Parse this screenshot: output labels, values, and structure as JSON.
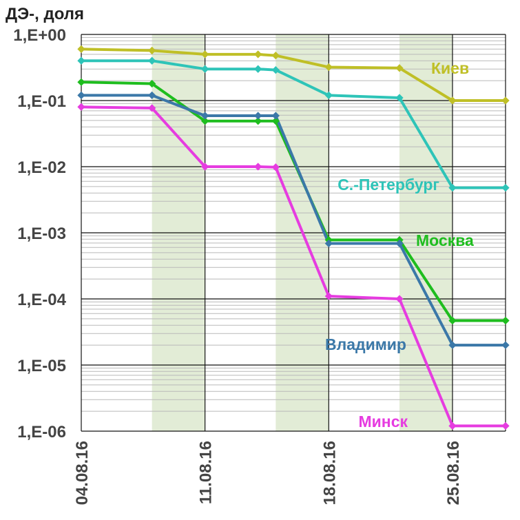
{
  "chart_data": {
    "type": "line",
    "ylabel": "ДЭ-, доля",
    "yscale": "log",
    "ylim": [
      1e-06,
      1
    ],
    "y_ticks": [
      "1,E+00",
      "1,E-01",
      "1,E-02",
      "1,E-03",
      "1,E-04",
      "1,E-05",
      "1,E-06"
    ],
    "x_ticks": [
      {
        "label": "04.08.16",
        "day": 4
      },
      {
        "label": "11.08.16",
        "day": 11
      },
      {
        "label": "18.08.16",
        "day": 18
      },
      {
        "label": "25.08.16",
        "day": 25
      }
    ],
    "xlim_days": [
      4,
      28
    ],
    "shaded_day_ranges": [
      [
        8,
        11
      ],
      [
        15,
        18
      ],
      [
        22,
        25
      ]
    ],
    "grid": true,
    "series": [
      {
        "name": "Киев",
        "color": "#bfbf26",
        "x": [
          4,
          8,
          11,
          14,
          15,
          18,
          22,
          25,
          28
        ],
        "y": [
          0.6,
          0.57,
          0.5,
          0.5,
          0.48,
          0.32,
          0.31,
          0.1,
          0.1
        ]
      },
      {
        "name": "С.-Петербург",
        "color": "#2ec4b8",
        "x": [
          4,
          8,
          11,
          14,
          15,
          18,
          22,
          25,
          28
        ],
        "y": [
          0.4,
          0.4,
          0.3,
          0.3,
          0.29,
          0.12,
          0.11,
          0.0048,
          0.0048
        ]
      },
      {
        "name": "Москва",
        "color": "#1ebd1e",
        "x": [
          4,
          8,
          11,
          14,
          15,
          18,
          22,
          25,
          28
        ],
        "y": [
          0.19,
          0.18,
          0.049,
          0.049,
          0.049,
          0.00078,
          0.00078,
          4.7e-05,
          4.7e-05
        ]
      },
      {
        "name": "Владимир",
        "color": "#3b78a8",
        "x": [
          4,
          8,
          11,
          14,
          15,
          18,
          22,
          25,
          28
        ],
        "y": [
          0.12,
          0.12,
          0.059,
          0.059,
          0.059,
          0.00069,
          0.00069,
          2e-05,
          2e-05
        ]
      },
      {
        "name": "Минск",
        "color": "#e63ce0",
        "x": [
          4,
          8,
          11,
          14,
          15,
          18,
          22,
          25,
          28
        ],
        "y": [
          0.08,
          0.077,
          0.01,
          0.01,
          0.0098,
          0.00011,
          0.0001,
          1.2e-06,
          1.2e-06
        ]
      }
    ]
  }
}
